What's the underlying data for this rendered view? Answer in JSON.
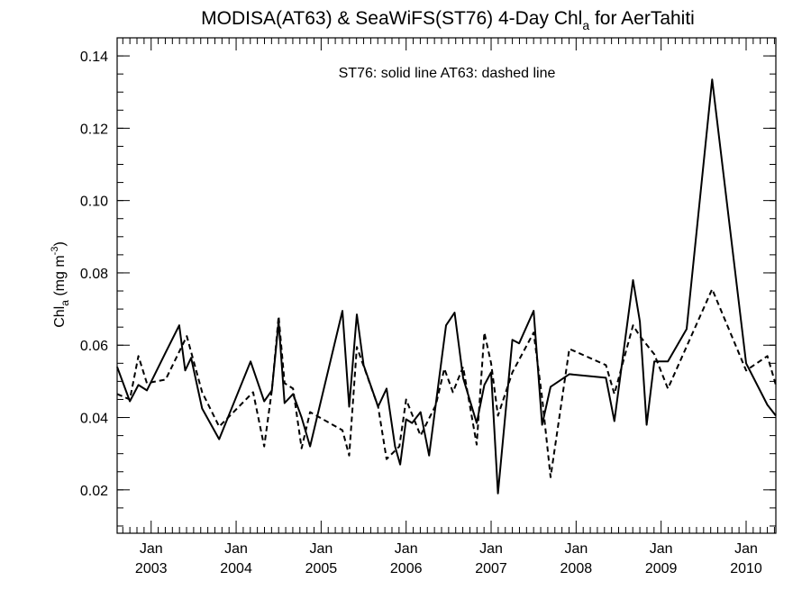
{
  "chart_data": {
    "type": "line",
    "title": {
      "main": "MODISA(AT63) & SeaWiFS(ST76) 4-Day Chl",
      "sub": "a",
      "rest": " for AerTahiti"
    },
    "ylabel": {
      "main": "Chl",
      "sub": "a",
      "unit": " (mg m",
      "sup": "-3",
      "close": ")"
    },
    "annotation": "ST76: solid line   AT63: dashed line",
    "xlim": [
      2002.6,
      2010.35
    ],
    "ylim": [
      0.008,
      0.145
    ],
    "y_ticks": [
      {
        "value": 0.02,
        "label": "0.02"
      },
      {
        "value": 0.04,
        "label": "0.04"
      },
      {
        "value": 0.06,
        "label": "0.06"
      },
      {
        "value": 0.08,
        "label": "0.08"
      },
      {
        "value": 0.1,
        "label": "0.10"
      },
      {
        "value": 0.12,
        "label": "0.12"
      },
      {
        "value": 0.14,
        "label": "0.14"
      }
    ],
    "x_ticks": [
      {
        "value": 2003.0,
        "month": "Jan",
        "year": "2003"
      },
      {
        "value": 2004.0,
        "month": "Jan",
        "year": "2004"
      },
      {
        "value": 2005.0,
        "month": "Jan",
        "year": "2005"
      },
      {
        "value": 2006.0,
        "month": "Jan",
        "year": "2006"
      },
      {
        "value": 2007.0,
        "month": "Jan",
        "year": "2007"
      },
      {
        "value": 2008.0,
        "month": "Jan",
        "year": "2008"
      },
      {
        "value": 2009.0,
        "month": "Jan",
        "year": "2009"
      },
      {
        "value": 2010.0,
        "month": "Jan",
        "year": "2010"
      }
    ],
    "series": [
      {
        "name": "ST76",
        "style": "solid",
        "color": "#000000",
        "x": [
          2002.6,
          2002.75,
          2002.85,
          2002.95,
          2003.17,
          2003.33,
          2003.4,
          2003.47,
          2003.6,
          2003.8,
          2004.17,
          2004.33,
          2004.42,
          2004.5,
          2004.57,
          2004.67,
          2004.77,
          2004.87,
          2005.25,
          2005.33,
          2005.42,
          2005.5,
          2005.67,
          2005.77,
          2005.87,
          2005.93,
          2006.0,
          2006.07,
          2006.17,
          2006.27,
          2006.47,
          2006.57,
          2006.67,
          2006.83,
          2006.92,
          2007.0,
          2007.08,
          2007.25,
          2007.33,
          2007.5,
          2007.6,
          2007.7,
          2007.92,
          2008.35,
          2008.45,
          2008.67,
          2008.75,
          2008.83,
          2008.92,
          2009.08,
          2009.3,
          2009.6,
          2010.0,
          2010.25,
          2010.35
        ],
        "y": [
          0.054,
          0.0445,
          0.049,
          0.0475,
          0.058,
          0.0655,
          0.053,
          0.0565,
          0.0425,
          0.034,
          0.0555,
          0.0445,
          0.0475,
          0.0665,
          0.044,
          0.0465,
          0.04,
          0.032,
          0.0695,
          0.043,
          0.0685,
          0.0545,
          0.043,
          0.048,
          0.032,
          0.027,
          0.0395,
          0.0385,
          0.0415,
          0.0295,
          0.0655,
          0.069,
          0.051,
          0.0385,
          0.049,
          0.0525,
          0.019,
          0.0615,
          0.0605,
          0.0695,
          0.038,
          0.0485,
          0.052,
          0.051,
          0.039,
          0.078,
          0.0665,
          0.038,
          0.0555,
          0.0555,
          0.0645,
          0.1335,
          0.055,
          0.0435,
          0.0405
        ]
      },
      {
        "name": "AT63",
        "style": "dashed",
        "color": "#000000",
        "x": [
          2002.6,
          2002.75,
          2002.85,
          2002.95,
          2003.17,
          2003.42,
          2003.6,
          2003.8,
          2004.2,
          2004.33,
          2004.42,
          2004.5,
          2004.57,
          2004.67,
          2004.77,
          2004.87,
          2005.25,
          2005.33,
          2005.42,
          2005.67,
          2005.77,
          2005.92,
          2006.0,
          2006.17,
          2006.35,
          2006.45,
          2006.55,
          2006.67,
          2006.83,
          2006.92,
          2007.0,
          2007.08,
          2007.25,
          2007.5,
          2007.6,
          2007.7,
          2007.92,
          2008.35,
          2008.45,
          2008.67,
          2008.75,
          2008.92,
          2009.08,
          2009.6,
          2010.0,
          2010.25,
          2010.35
        ],
        "y": [
          0.0465,
          0.045,
          0.057,
          0.0495,
          0.0505,
          0.0625,
          0.047,
          0.0375,
          0.047,
          0.032,
          0.0475,
          0.068,
          0.0495,
          0.048,
          0.0315,
          0.0415,
          0.0365,
          0.0295,
          0.0595,
          0.043,
          0.0285,
          0.032,
          0.045,
          0.035,
          0.0435,
          0.0535,
          0.047,
          0.054,
          0.0325,
          0.0635,
          0.055,
          0.0405,
          0.0525,
          0.0635,
          0.0455,
          0.0235,
          0.059,
          0.0545,
          0.0465,
          0.0655,
          0.0625,
          0.0575,
          0.048,
          0.0755,
          0.053,
          0.057,
          0.049
        ]
      }
    ]
  }
}
